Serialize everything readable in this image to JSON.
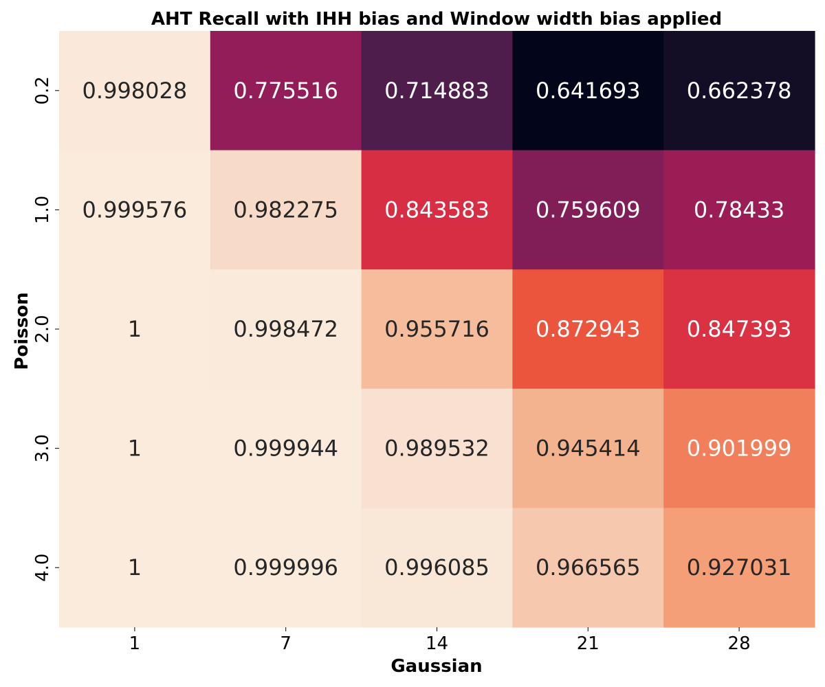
{
  "chart_data": {
    "type": "heatmap",
    "title": "AHT Recall with IHH bias and Window width bias applied",
    "xlabel": "Gaussian",
    "ylabel": "Poisson",
    "x_categories": [
      "1",
      "7",
      "14",
      "21",
      "28"
    ],
    "y_categories": [
      "0.2",
      "1.0",
      "2.0",
      "3.0",
      "4.0"
    ],
    "values": [
      [
        0.998028,
        0.775516,
        0.714883,
        0.641693,
        0.662378
      ],
      [
        0.999576,
        0.982275,
        0.843583,
        0.759609,
        0.78433
      ],
      [
        1,
        0.998472,
        0.955716,
        0.872943,
        0.847393
      ],
      [
        1,
        0.999944,
        0.989532,
        0.945414,
        0.901999
      ],
      [
        1,
        0.999996,
        0.996085,
        0.966565,
        0.927031
      ]
    ],
    "cell_labels": [
      [
        "0.998028",
        "0.775516",
        "0.714883",
        "0.641693",
        "0.662378"
      ],
      [
        "0.999576",
        "0.982275",
        "0.843583",
        "0.759609",
        "0.78433"
      ],
      [
        "1",
        "0.998472",
        "0.955716",
        "0.872943",
        "0.847393"
      ],
      [
        "1",
        "0.999944",
        "0.989532",
        "0.945414",
        "0.901999"
      ],
      [
        "1",
        "0.999996",
        "0.996085",
        "0.966565",
        "0.927031"
      ]
    ],
    "colormap": "rocket",
    "vmin": 0.641693,
    "vmax": 1,
    "colorbar": false
  }
}
